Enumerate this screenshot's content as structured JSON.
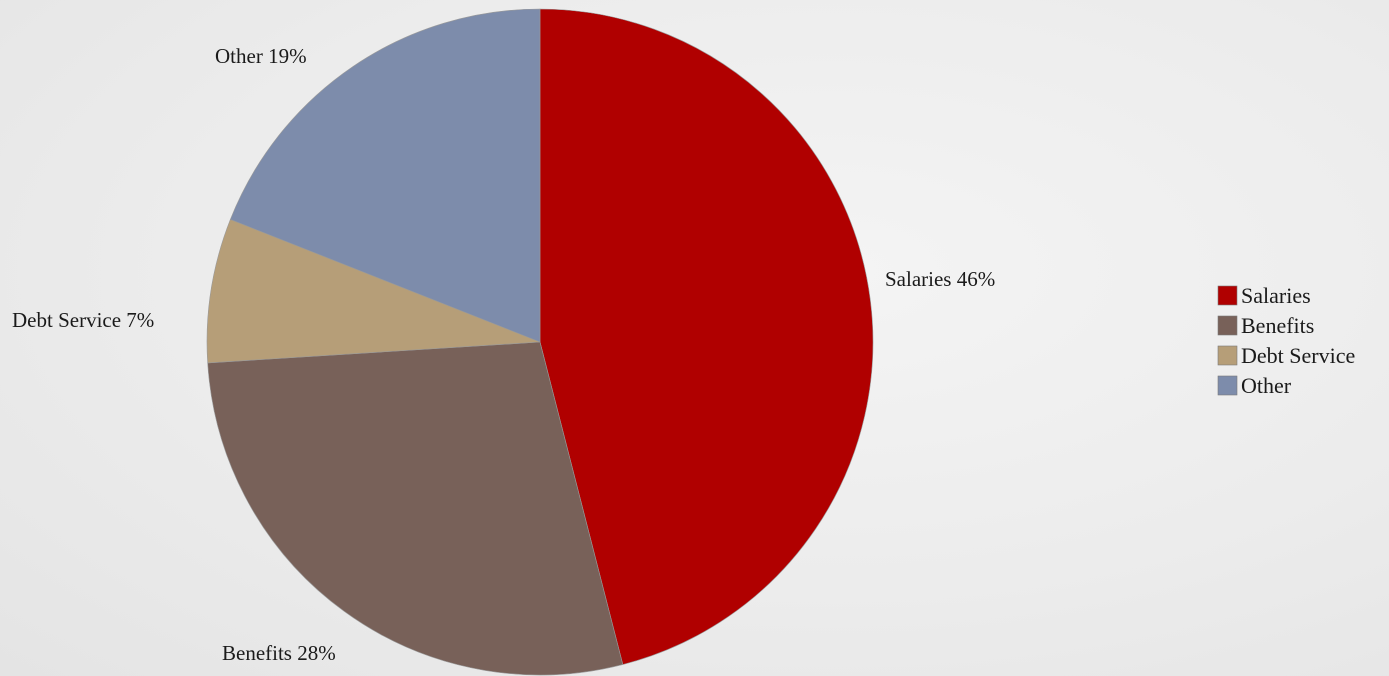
{
  "chart_data": {
    "type": "pie",
    "categories": [
      "Salaries",
      "Benefits",
      "Debt Service",
      "Other"
    ],
    "values": [
      46,
      28,
      7,
      19
    ],
    "unit": "%",
    "data_labels": [
      "Salaries 46%",
      "Benefits 28%",
      "Debt Service 7%",
      "Other 19%"
    ],
    "colors": [
      "#b00000",
      "#786159",
      "#b69e78",
      "#7d8cab"
    ],
    "legend": {
      "position": "right",
      "entries": [
        "Salaries",
        "Benefits",
        "Debt Service",
        "Other"
      ]
    },
    "start_angle": "12 o'clock",
    "direction": "clockwise"
  }
}
